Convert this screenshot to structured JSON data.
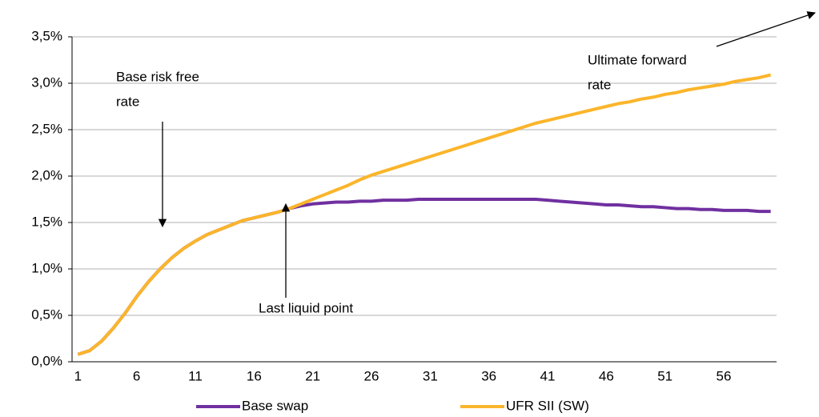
{
  "chart_data": {
    "type": "line",
    "x": [
      1,
      2,
      3,
      4,
      5,
      6,
      7,
      8,
      9,
      10,
      11,
      12,
      13,
      14,
      15,
      16,
      17,
      18,
      19,
      20,
      21,
      22,
      23,
      24,
      25,
      26,
      27,
      28,
      29,
      30,
      31,
      32,
      33,
      34,
      35,
      36,
      37,
      38,
      39,
      40,
      41,
      42,
      43,
      44,
      45,
      46,
      47,
      48,
      49,
      50,
      51,
      52,
      53,
      54,
      55,
      56,
      57,
      58,
      59,
      60
    ],
    "xlim": [
      0.5,
      60.5
    ],
    "xticks": [
      1,
      6,
      11,
      16,
      21,
      26,
      31,
      36,
      41,
      46,
      51,
      56
    ],
    "ylim": [
      0,
      3.5
    ],
    "yticks": [
      {
        "value": 0,
        "label": "0,0%"
      },
      {
        "value": 0.5,
        "label": "0,5%"
      },
      {
        "value": 1,
        "label": "1,0%"
      },
      {
        "value": 1.5,
        "label": "1,5%"
      },
      {
        "value": 2,
        "label": "2,0%"
      },
      {
        "value": 2.5,
        "label": "2,5%"
      },
      {
        "value": 3,
        "label": "3,0%"
      },
      {
        "value": 3.5,
        "label": "3,5%"
      }
    ],
    "grid": true,
    "legend": "bottom",
    "series": [
      {
        "name": "Base swap",
        "color": "#7030a0",
        "values": [
          0.08,
          0.12,
          0.22,
          0.36,
          0.52,
          0.7,
          0.86,
          1.0,
          1.12,
          1.22,
          1.3,
          1.37,
          1.42,
          1.47,
          1.52,
          1.55,
          1.58,
          1.61,
          1.65,
          1.68,
          1.7,
          1.71,
          1.72,
          1.72,
          1.73,
          1.73,
          1.74,
          1.74,
          1.74,
          1.75,
          1.75,
          1.75,
          1.75,
          1.75,
          1.75,
          1.75,
          1.75,
          1.75,
          1.75,
          1.75,
          1.74,
          1.73,
          1.72,
          1.71,
          1.7,
          1.69,
          1.69,
          1.68,
          1.67,
          1.67,
          1.66,
          1.65,
          1.65,
          1.64,
          1.64,
          1.63,
          1.63,
          1.63,
          1.62,
          1.62
        ]
      },
      {
        "name": "UFR SII (SW)",
        "color": "#fbb52b",
        "values": [
          0.08,
          0.12,
          0.22,
          0.36,
          0.52,
          0.7,
          0.86,
          1.0,
          1.12,
          1.22,
          1.3,
          1.37,
          1.42,
          1.47,
          1.52,
          1.55,
          1.58,
          1.61,
          1.65,
          1.7,
          1.75,
          1.8,
          1.85,
          1.9,
          1.96,
          2.01,
          2.05,
          2.09,
          2.13,
          2.17,
          2.21,
          2.25,
          2.29,
          2.33,
          2.37,
          2.41,
          2.45,
          2.49,
          2.53,
          2.57,
          2.6,
          2.63,
          2.66,
          2.69,
          2.72,
          2.75,
          2.78,
          2.8,
          2.83,
          2.85,
          2.88,
          2.9,
          2.93,
          2.95,
          2.97,
          2.99,
          3.02,
          3.04,
          3.06,
          3.09
        ]
      }
    ],
    "annotations": [
      {
        "text": [
          "Base risk free",
          "rate"
        ]
      },
      {
        "text": [
          "Last liquid point"
        ]
      },
      {
        "text": [
          "Ultimate forward",
          "rate"
        ]
      }
    ]
  }
}
